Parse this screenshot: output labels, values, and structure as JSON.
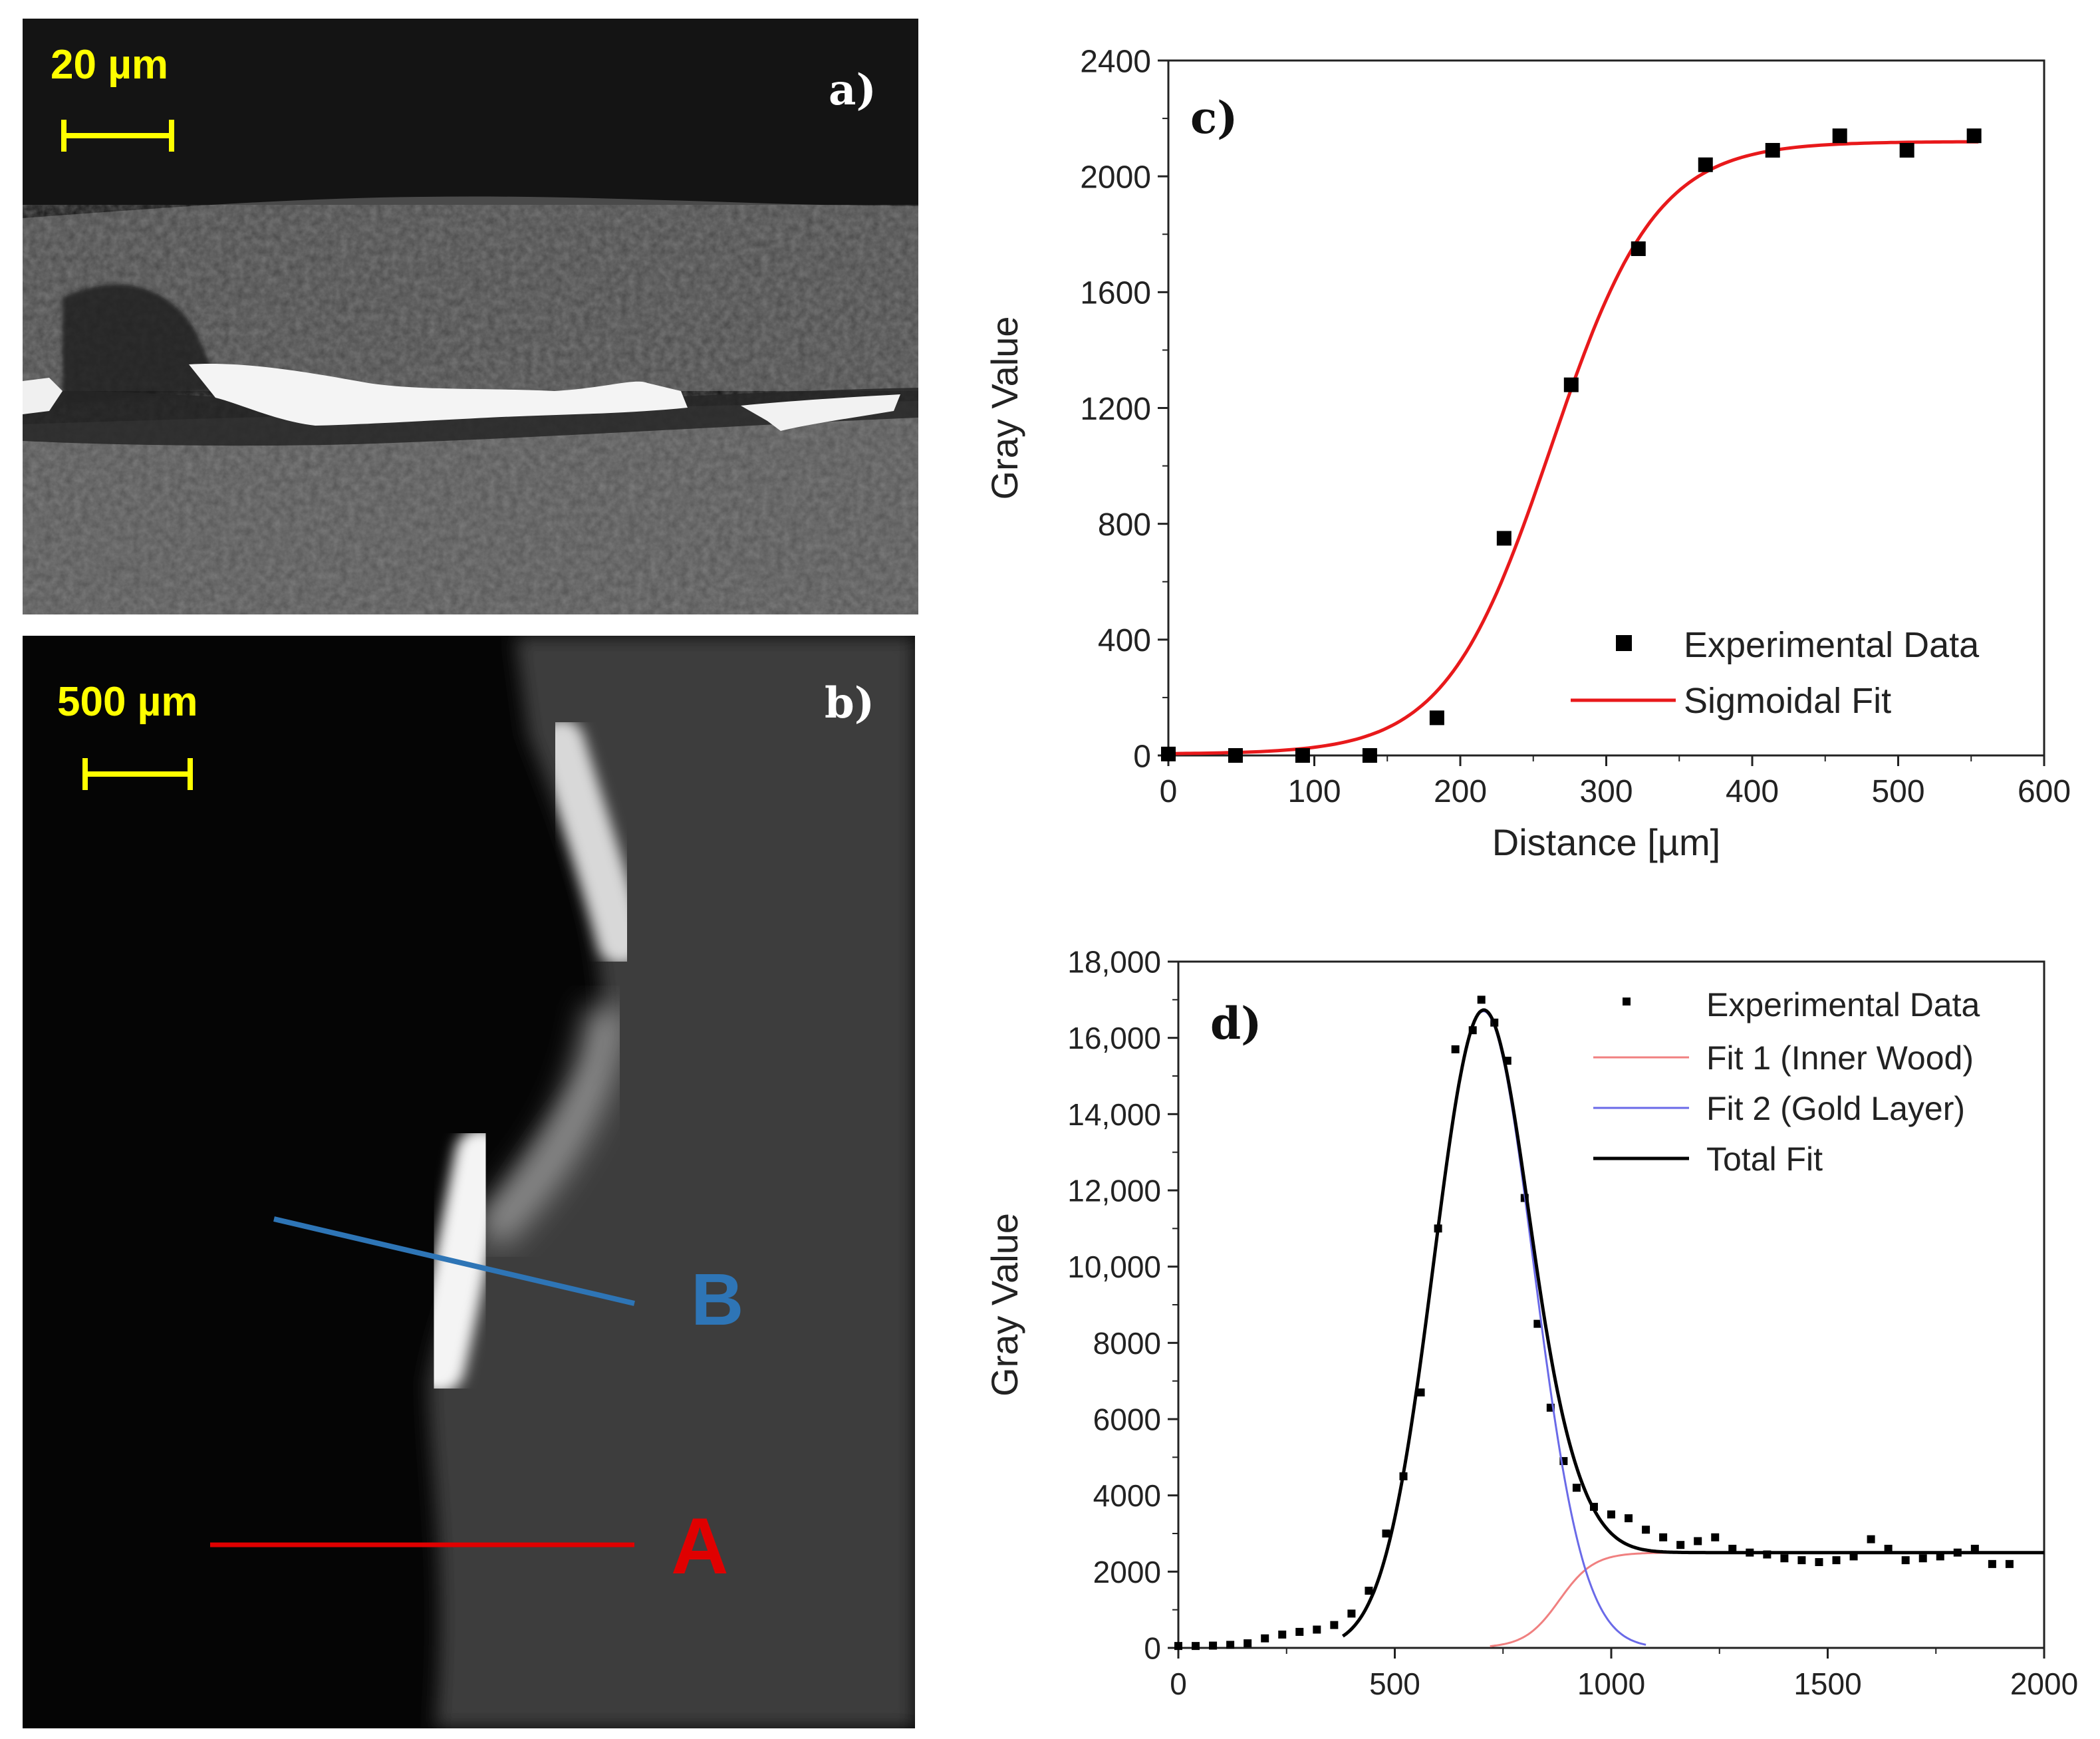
{
  "panel_a": {
    "scale_label": "20 µm",
    "letter": "a)"
  },
  "panel_b": {
    "scale_label": "500 µm",
    "letter": "b)",
    "line_b_label": "B",
    "line_a_label": "A",
    "line_b_color": "#2e75b6",
    "line_a_color": "#e00000"
  },
  "chart_data": [
    {
      "type": "scatter",
      "letter": "c)",
      "xlabel": "Distance [µm]",
      "ylabel": "Gray Value",
      "xlim": [
        0,
        600
      ],
      "ylim": [
        0,
        2400
      ],
      "xticks": [
        0,
        100,
        200,
        300,
        400,
        500,
        600
      ],
      "yticks": [
        0,
        400,
        800,
        1200,
        1600,
        2000,
        2400
      ],
      "series": [
        {
          "name": "Experimental Data",
          "kind": "markers",
          "color": "#000000",
          "x": [
            0,
            46,
            92,
            138,
            184,
            230,
            276,
            322,
            368,
            414,
            460,
            506,
            552
          ],
          "y": [
            5,
            0,
            0,
            0,
            130,
            750,
            1280,
            1750,
            2040,
            2090,
            2140,
            2090,
            2140
          ]
        },
        {
          "name": "Sigmoidal Fit",
          "kind": "line",
          "color": "#e8191b",
          "model": {
            "bottom": 5,
            "top": 2120,
            "x0": 262,
            "dx": 36
          }
        }
      ]
    },
    {
      "type": "scatter",
      "letter": "d)",
      "xlabel": "",
      "ylabel": "Gray Value",
      "xlim": [
        0,
        2000
      ],
      "ylim": [
        0,
        18000
      ],
      "xticks": [
        0,
        500,
        1000,
        1500,
        2000
      ],
      "yticks": [
        0,
        2000,
        4000,
        6000,
        8000,
        10000,
        12000,
        14000,
        16000,
        18000
      ],
      "series": [
        {
          "name": "Experimental Data",
          "kind": "markers",
          "color": "#000000",
          "x": [
            0,
            40,
            80,
            120,
            160,
            200,
            240,
            280,
            320,
            360,
            400,
            440,
            480,
            520,
            560,
            600,
            640,
            680,
            700,
            730,
            760,
            800,
            830,
            860,
            890,
            920,
            960,
            1000,
            1040,
            1080,
            1120,
            1160,
            1200,
            1240,
            1280,
            1320,
            1360,
            1400,
            1440,
            1480,
            1520,
            1560,
            1600,
            1640,
            1680,
            1720,
            1760,
            1800,
            1840,
            1880,
            1920
          ],
          "y": [
            50,
            50,
            60,
            80,
            120,
            250,
            350,
            420,
            480,
            600,
            900,
            1500,
            3000,
            4500,
            6700,
            11000,
            15700,
            16200,
            17000,
            16400,
            15400,
            11800,
            8500,
            6300,
            4900,
            4200,
            3700,
            3500,
            3400,
            3100,
            2900,
            2700,
            2800,
            2900,
            2600,
            2500,
            2450,
            2350,
            2300,
            2250,
            2300,
            2400,
            2850,
            2600,
            2300,
            2350,
            2400,
            2500,
            2600,
            2200,
            2200
          ]
        },
        {
          "name": "Fit 1 (Inner Wood)",
          "kind": "line",
          "color": "#f08080",
          "model": {
            "top": 2500,
            "x0": 880,
            "dx": 40,
            "xmin": 720
          }
        },
        {
          "name": "Fit 2 (Gold Layer)",
          "kind": "line",
          "color": "#6a6ae8",
          "model": {
            "amp": 16700,
            "mu": 705,
            "sigma": 115,
            "xmax": 1080
          }
        },
        {
          "name": "Total Fit",
          "kind": "line",
          "color": "#000000",
          "model": {
            "xmin": 380,
            "xmax": 1950
          }
        }
      ]
    }
  ]
}
